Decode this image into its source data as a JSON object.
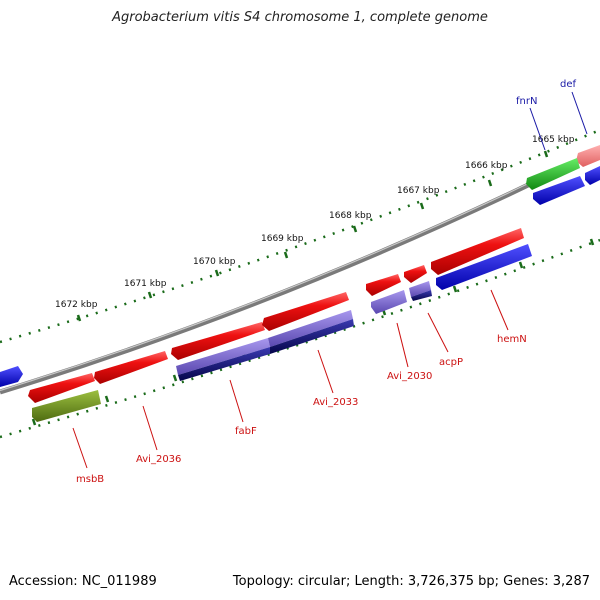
{
  "title": "Agrobacterium vitis S4 chromosome 1, complete genome",
  "footer": {
    "accession": "Accession: NC_011989",
    "summary": "Topology: circular; Length: 3,726,375 bp; Genes: 3,287"
  },
  "kbp_labels": [
    "1665 kbp",
    "1666 kbp",
    "1667 kbp",
    "1668 kbp",
    "1669 kbp",
    "1670 kbp",
    "1671 kbp",
    "1672 kbp"
  ],
  "gene_labels": [
    {
      "text": "def",
      "color": "#1a1aa6"
    },
    {
      "text": "fnrN",
      "color": "#1a1aa6"
    },
    {
      "text": "hemN",
      "color": "#cc1111"
    },
    {
      "text": "acpP",
      "color": "#cc1111"
    },
    {
      "text": "Avi_2030",
      "color": "#cc1111"
    },
    {
      "text": "Avi_2033",
      "color": "#cc1111"
    },
    {
      "text": "fabF",
      "color": "#cc1111"
    },
    {
      "text": "Avi_2036",
      "color": "#cc1111"
    },
    {
      "text": "msbB",
      "color": "#cc1111"
    }
  ],
  "colors": {
    "forward_red": "#e8141c",
    "light_red": "#f08080",
    "green": "#22bb22",
    "olive": "#6b8e23",
    "blue": "#1010e0",
    "purple": "#7060c8",
    "navy": "#0a0a80",
    "backbone": "#808080",
    "tick": "#1a6b1a"
  }
}
